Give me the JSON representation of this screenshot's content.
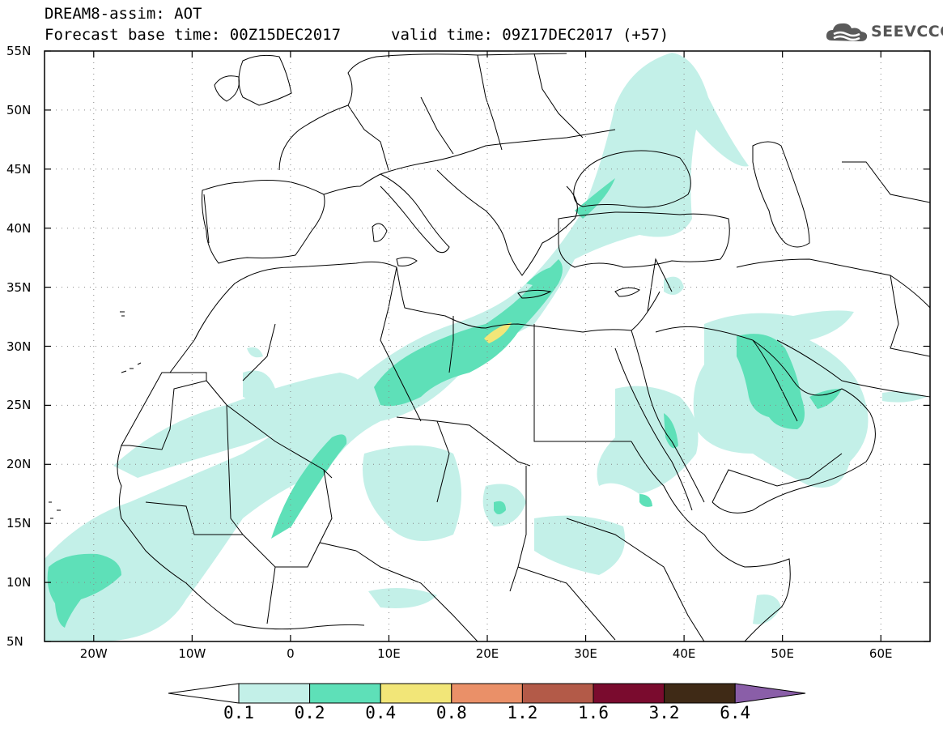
{
  "header": {
    "title": "DREAM8-assim: AOT",
    "base_time": "Forecast base time: 00Z15DEC2017",
    "valid_time": "valid time: 09Z17DEC2017 (+57)"
  },
  "logo": {
    "text": "SEEVCCC",
    "icon": "cloud-icon"
  },
  "axes": {
    "lat_labels": [
      "55N",
      "50N",
      "45N",
      "40N",
      "35N",
      "30N",
      "25N",
      "20N",
      "15N",
      "10N",
      "5N"
    ],
    "lon_labels": [
      "20W",
      "10W",
      "0",
      "10E",
      "20E",
      "30E",
      "40E",
      "50E",
      "60E"
    ],
    "lat_range": [
      5,
      55
    ],
    "lon_range": [
      -25,
      65
    ],
    "grid": "dotted"
  },
  "colorbar": {
    "levels": [
      "0.1",
      "0.2",
      "0.4",
      "0.8",
      "1.2",
      "1.6",
      "3.2",
      "6.4"
    ],
    "colors": [
      "#ffffff",
      "#c3f0e8",
      "#5ee0b8",
      "#f2e678",
      "#ea9068",
      "#b35a48",
      "#7a0b2e",
      "#3f2a16",
      "#8a5ea8"
    ]
  }
}
